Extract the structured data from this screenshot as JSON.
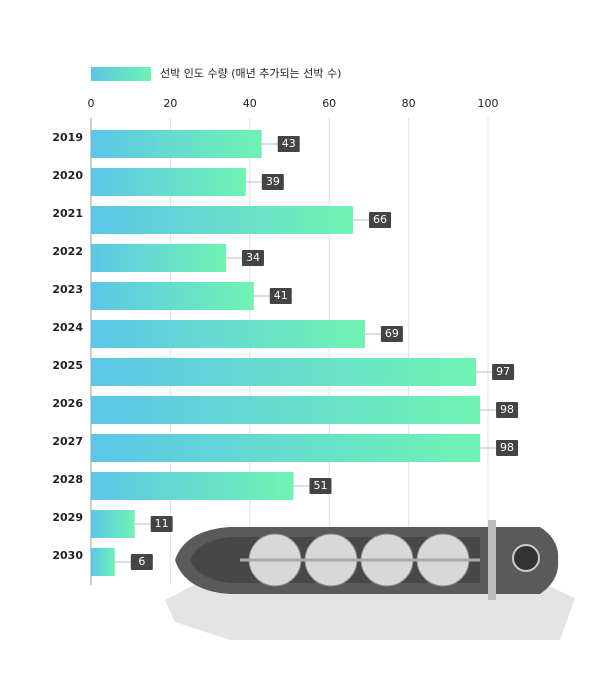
{
  "chart_data": {
    "type": "bar",
    "orientation": "horizontal",
    "legend": "선박 인도 수량 (매년 추가되는 선박 수)",
    "categories": [
      "2019",
      "2020",
      "2021",
      "2022",
      "2023",
      "2024",
      "2025",
      "2026",
      "2027",
      "2028",
      "2029",
      "2030"
    ],
    "values": [
      43,
      39,
      66,
      34,
      41,
      69,
      97,
      98,
      98,
      51,
      11,
      6
    ],
    "colors": [
      "#5cc6e8",
      "#6ff3b2"
    ],
    "xlim": [
      0,
      100
    ],
    "xticks": [
      0,
      20,
      40,
      60,
      80,
      100
    ],
    "grid": true
  }
}
